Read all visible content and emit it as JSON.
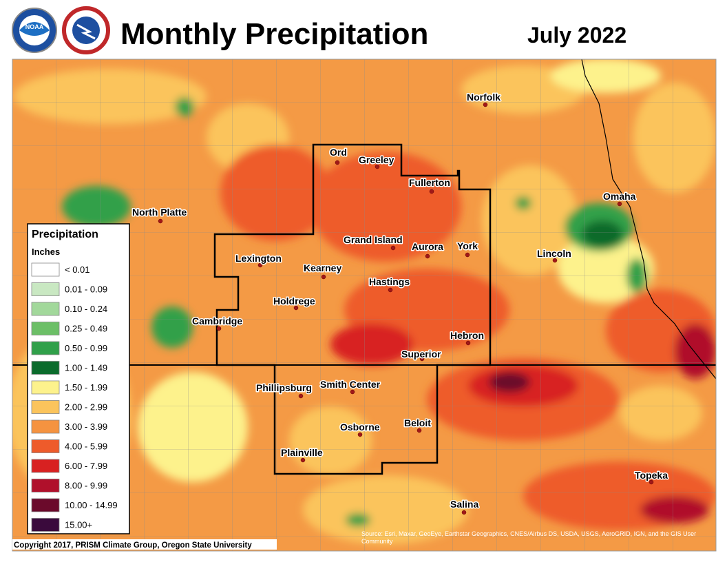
{
  "header": {
    "title": "Monthly Precipitation",
    "date": "July 2022",
    "logo_text": "NOAA"
  },
  "legend": {
    "title": "Precipitation",
    "units": "Inches",
    "items": [
      {
        "label": "< 0.01",
        "color": "#ffffff"
      },
      {
        "label": "0.01 - 0.09",
        "color": "#c9e8c2"
      },
      {
        "label": "0.10 - 0.24",
        "color": "#a2d89b"
      },
      {
        "label": "0.25 - 0.49",
        "color": "#6cbf67"
      },
      {
        "label": "0.50 - 0.99",
        "color": "#30a04a"
      },
      {
        "label": "1.00 - 1.49",
        "color": "#0b6b2c"
      },
      {
        "label": "1.50 - 1.99",
        "color": "#fdf28c"
      },
      {
        "label": "2.00 - 2.99",
        "color": "#fbc45c"
      },
      {
        "label": "3.00 - 3.99",
        "color": "#f59340"
      },
      {
        "label": "4.00 - 5.99",
        "color": "#ee5b2b"
      },
      {
        "label": "6.00 - 7.99",
        "color": "#d82121"
      },
      {
        "label": "8.00 - 9.99",
        "color": "#b0102b"
      },
      {
        "label": "10.00 - 14.99",
        "color": "#6b0a2b"
      },
      {
        "label": "15.00+",
        "color": "#3a0a3c"
      }
    ]
  },
  "cities": [
    "Norfolk",
    "Ord",
    "Greeley",
    "Fullerton",
    "Omaha",
    "North Platte",
    "Grand Island",
    "Aurora",
    "York",
    "Lincoln",
    "Lexington",
    "Kearney",
    "Hastings",
    "Holdrege",
    "Cambridge",
    "Hebron",
    "Superior",
    "Phillipsburg",
    "Smith Center",
    "Osborne",
    "Beloit",
    "Plainville",
    "Topeka",
    "Salina"
  ],
  "footer": {
    "copyright": "Copyright 2017, PRISM Climate Group, Oregon State University",
    "source": "Source: Esri, Maxar, GeoEye, Earthstar Geographics, CNES/Airbus DS, USDA, USGS, AeroGRID, IGN, and the GIS User Community"
  }
}
